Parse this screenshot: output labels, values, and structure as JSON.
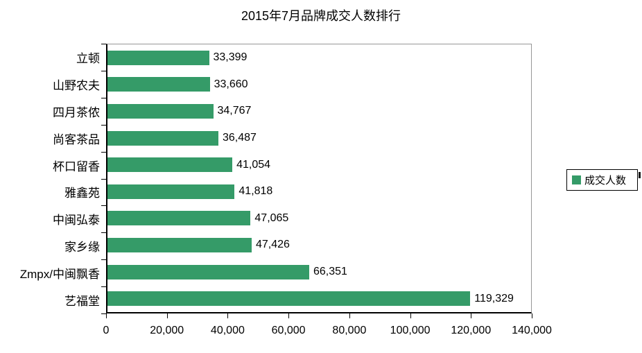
{
  "title": "2015年7月品牌成交人数排行",
  "legend": {
    "label": "成交人数"
  },
  "chart_data": {
    "type": "bar",
    "orientation": "horizontal",
    "title": "2015年7月品牌成交人数排行",
    "categories": [
      "立顿",
      "山野农夫",
      "四月茶侬",
      "尚客茶品",
      "杯口留香",
      "雅鑫苑",
      "中闽弘泰",
      "家乡缘",
      "Zmpx/中闽飘香",
      "艺福堂"
    ],
    "values": [
      33399,
      33660,
      34767,
      36487,
      41054,
      41818,
      47065,
      47426,
      66351,
      119329
    ],
    "value_labels": [
      "33,399",
      "33,660",
      "34,767",
      "36,487",
      "41,054",
      "41,818",
      "47,065",
      "47,426",
      "66,351",
      "119,329"
    ],
    "series_name": "成交人数",
    "xlim": [
      0,
      140000
    ],
    "x_tick_values": [
      0,
      20000,
      40000,
      60000,
      80000,
      100000,
      120000,
      140000
    ],
    "x_tick_labels": [
      "0",
      "20,000",
      "40,000",
      "60,000",
      "80,000",
      "100,000",
      "120,000",
      "140,000"
    ],
    "bar_color": "#359b68",
    "axis_color": "#000000",
    "plot_border_color": "#969696",
    "grid": false,
    "legend_position": "right",
    "value_labels_shown": true
  }
}
